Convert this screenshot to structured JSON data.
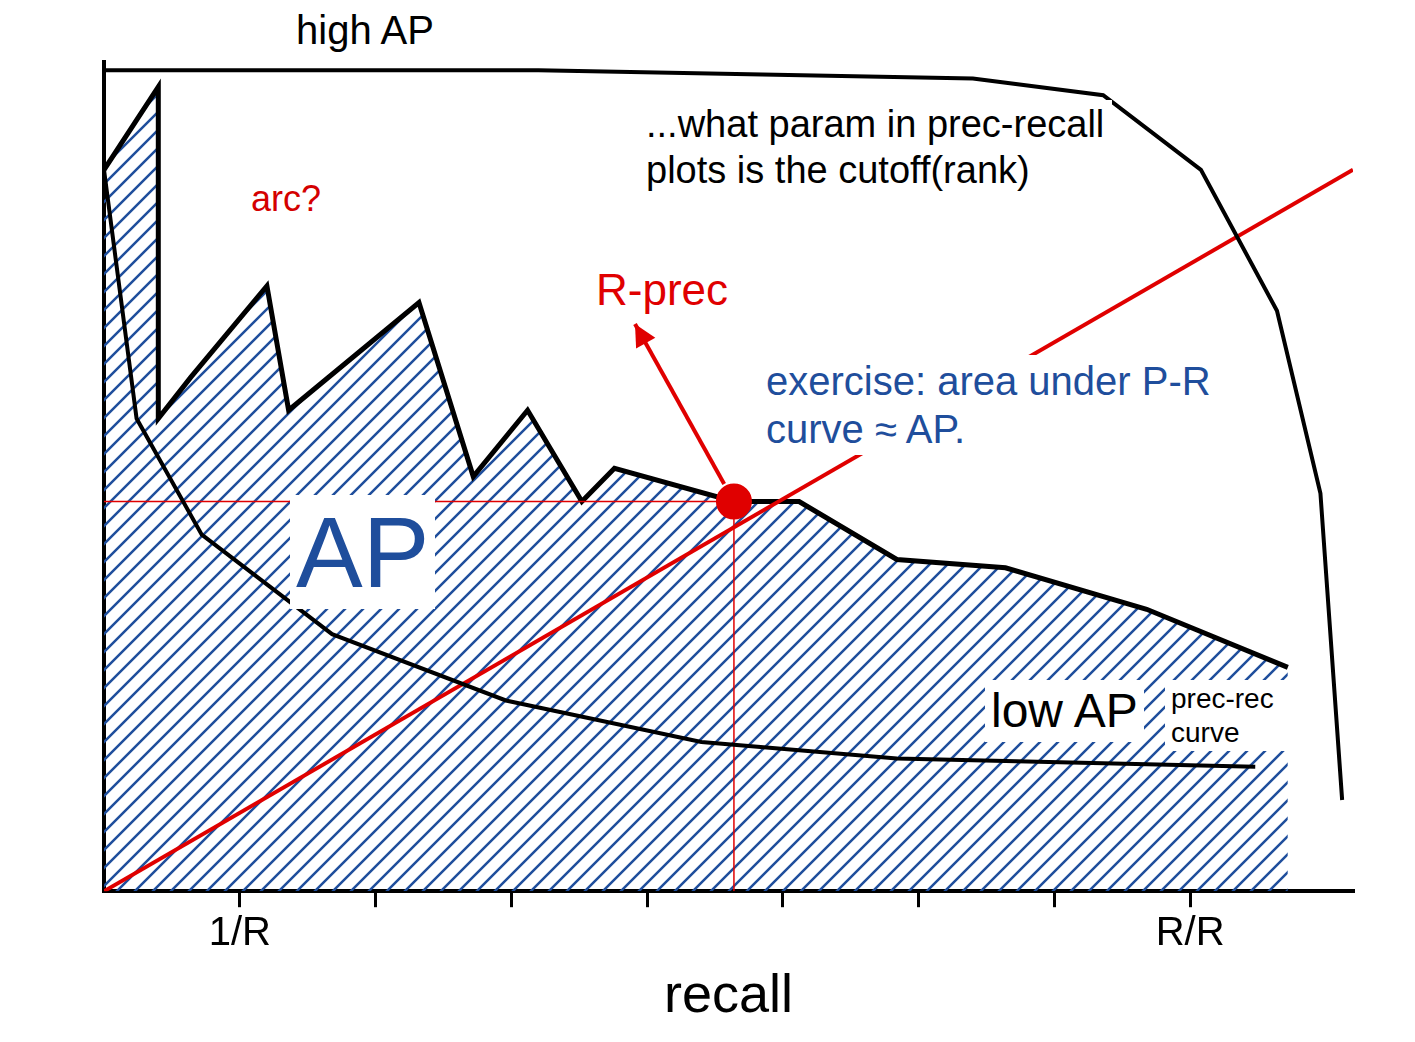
{
  "chart_data": {
    "type": "line",
    "x_label": "recall",
    "xlim": [
      0,
      1.15
    ],
    "ylim": [
      0,
      1
    ],
    "xticks": [
      {
        "value": 0.125,
        "label": "1/R"
      },
      {
        "value": 0.25,
        "label": null
      },
      {
        "value": 0.375,
        "label": null
      },
      {
        "value": 0.5,
        "label": null
      },
      {
        "value": 0.625,
        "label": null
      },
      {
        "value": 0.75,
        "label": null
      },
      {
        "value": 0.875,
        "label": null
      },
      {
        "value": 1,
        "label": "R/R"
      }
    ],
    "yticks": [],
    "grid": false,
    "tick_labels": "x",
    "annotations": [
      {
        "text": "...what param in prec-recall plots is the cutoff(rank)",
        "color": "#000000"
      },
      {
        "text": "arc?",
        "color": "#d40000"
      },
      {
        "text": "exercise: area under P-R curve ≈ AP.",
        "color": "#1f4e9c"
      },
      {
        "text": "AP",
        "color": "#1f4e9c"
      }
    ],
    "series": [
      {
        "name": "high AP",
        "type": "line",
        "color": "#000000",
        "marker": "none",
        "line_style": "solid",
        "x": [
          0,
          0.4,
          0.8,
          0.92,
          1.01,
          1.08,
          1.12,
          1.14
        ],
        "values": [
          0.99,
          0.99,
          0.98,
          0.96,
          0.87,
          0.7,
          0.48,
          0.11
        ]
      },
      {
        "name": "low AP",
        "type": "line",
        "color": "#000000",
        "marker": "none",
        "line_style": "solid",
        "x": [
          0,
          0.03,
          0.09,
          0.21,
          0.37,
          0.55,
          0.73,
          1.06
        ],
        "values": [
          0.87,
          0.57,
          0.43,
          0.31,
          0.23,
          0.18,
          0.16,
          0.15
        ]
      },
      {
        "name": "prec-rec curve",
        "type": "area",
        "color": "#000000",
        "marker": "none",
        "line_style": "solid",
        "x": [
          0,
          0.05,
          0.05,
          0.08,
          0.15,
          0.17,
          0.29,
          0.34,
          0.39,
          0.44,
          0.47,
          0.58,
          0.64,
          0.73,
          0.83,
          0.96,
          1.09
        ],
        "values": [
          0.87,
          0.97,
          0.57,
          0.62,
          0.73,
          0.58,
          0.71,
          0.5,
          0.58,
          0.47,
          0.51,
          0.47,
          0.47,
          0.4,
          0.39,
          0.34,
          0.27
        ]
      },
      {
        "type": "line",
        "color": "#e00000",
        "marker": "none",
        "line_style": "solid",
        "x": [
          0,
          1.15
        ],
        "values": [
          0,
          0.87
        ]
      },
      {
        "name": "R-prec",
        "type": "line",
        "color": "#e00000",
        "marker": "circle",
        "line_style": "none",
        "x": [
          0.58
        ],
        "values": [
          0.47
        ]
      },
      {
        "type": "line",
        "color": "#e00000",
        "marker": "none",
        "line_style": "thin",
        "x": [
          0,
          0.58
        ],
        "values": [
          0.47,
          0.47
        ]
      },
      {
        "type": "line",
        "color": "#e00000",
        "marker": "none",
        "line_style": "thin",
        "x": [
          0.58,
          0.58
        ],
        "values": [
          0,
          0.47
        ]
      }
    ]
  }
}
